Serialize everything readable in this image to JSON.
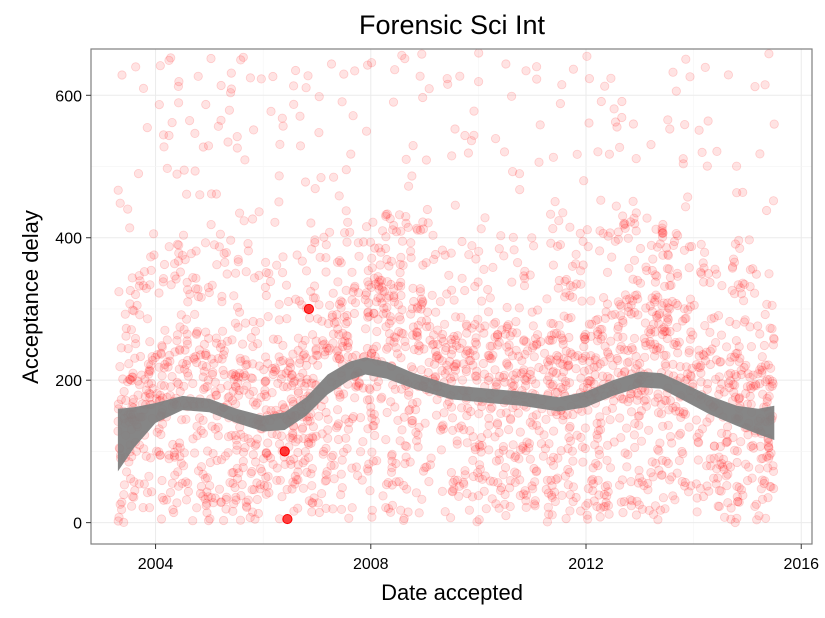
{
  "chart_data": {
    "type": "scatter",
    "title": "Forensic Sci Int",
    "xlabel": "Date accepted",
    "ylabel": "Acceptance delay",
    "x_ticks": [
      2004,
      2008,
      2012,
      2016
    ],
    "y_ticks": [
      0,
      200,
      400,
      600
    ],
    "xlim": [
      2002.8,
      2016.2
    ],
    "ylim": [
      -30,
      665
    ],
    "grid": true,
    "legend": "none",
    "point_color": "#ff0000",
    "band_color": "#808080",
    "points_range": {
      "x": [
        2003.3,
        2015.5
      ],
      "y": [
        0,
        660
      ]
    },
    "point_count_approx": 2600,
    "highlighted_points": [
      {
        "x": 2006.45,
        "y": 5
      },
      {
        "x": 2006.4,
        "y": 100
      },
      {
        "x": 2006.85,
        "y": 300
      }
    ],
    "smooth_band": [
      {
        "x": 2003.3,
        "lo": 72,
        "hi": 160
      },
      {
        "x": 2003.6,
        "lo": 105,
        "hi": 162
      },
      {
        "x": 2004.0,
        "lo": 140,
        "hi": 168
      },
      {
        "x": 2004.5,
        "lo": 158,
        "hi": 178
      },
      {
        "x": 2005.0,
        "lo": 155,
        "hi": 174
      },
      {
        "x": 2005.5,
        "lo": 140,
        "hi": 160
      },
      {
        "x": 2006.0,
        "lo": 128,
        "hi": 150
      },
      {
        "x": 2006.4,
        "lo": 130,
        "hi": 155
      },
      {
        "x": 2006.8,
        "lo": 150,
        "hi": 176
      },
      {
        "x": 2007.2,
        "lo": 180,
        "hi": 208
      },
      {
        "x": 2007.6,
        "lo": 200,
        "hi": 226
      },
      {
        "x": 2007.9,
        "lo": 208,
        "hi": 232
      },
      {
        "x": 2008.3,
        "lo": 202,
        "hi": 226
      },
      {
        "x": 2008.8,
        "lo": 188,
        "hi": 210
      },
      {
        "x": 2009.5,
        "lo": 173,
        "hi": 193
      },
      {
        "x": 2010.2,
        "lo": 168,
        "hi": 188
      },
      {
        "x": 2010.8,
        "lo": 164,
        "hi": 184
      },
      {
        "x": 2011.5,
        "lo": 156,
        "hi": 176
      },
      {
        "x": 2012.0,
        "lo": 162,
        "hi": 184
      },
      {
        "x": 2012.5,
        "lo": 178,
        "hi": 200
      },
      {
        "x": 2013.0,
        "lo": 190,
        "hi": 212
      },
      {
        "x": 2013.4,
        "lo": 188,
        "hi": 210
      },
      {
        "x": 2013.8,
        "lo": 172,
        "hi": 196
      },
      {
        "x": 2014.3,
        "lo": 152,
        "hi": 178
      },
      {
        "x": 2014.8,
        "lo": 136,
        "hi": 164
      },
      {
        "x": 2015.2,
        "lo": 124,
        "hi": 160
      },
      {
        "x": 2015.5,
        "lo": 116,
        "hi": 164
      }
    ]
  }
}
